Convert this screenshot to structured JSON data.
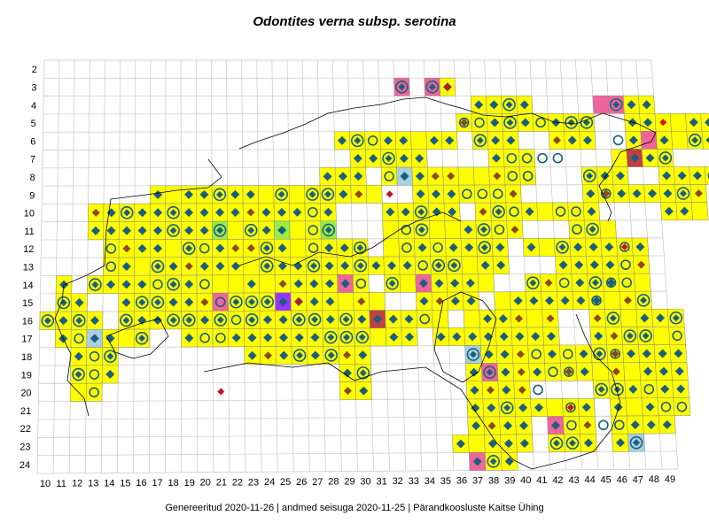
{
  "title": "Odontites verna subsp. serotina",
  "footer": {
    "generated_label": "Genereeritud 2020-11-26",
    "data_label": "andmed seisuga 2020-11-25",
    "org": "Pärandkoosluste Kaitse Ühing",
    "sep": "|"
  },
  "columns": [
    "10",
    "11",
    "12",
    "13",
    "14",
    "15",
    "16",
    "17",
    "18",
    "19",
    "20",
    "21",
    "22",
    "23",
    "24",
    "25",
    "26",
    "27",
    "28",
    "29",
    "30",
    "31",
    "32",
    "33",
    "34",
    "35",
    "36",
    "37",
    "38",
    "39",
    "40",
    "41",
    "42",
    "43",
    "44",
    "45",
    "46",
    "47",
    "48",
    "49"
  ],
  "rows": [
    "2",
    "3",
    "4",
    "5",
    "6",
    "7",
    "8",
    "9",
    "10",
    "11",
    "12",
    "13",
    "14",
    "15",
    "16",
    "17",
    "18",
    "19",
    "20",
    "21",
    "22",
    "23",
    "24"
  ],
  "colors": {
    "yellow": "#ffff00",
    "green": "#99ee44",
    "pink": "#ee6699",
    "light_blue": "#a8d0e0",
    "brown_red": "#c04040",
    "purple": "#9933ff",
    "diamond_blue": "#1a5e80",
    "diamond_brown": "#8b4a22",
    "diamond_red": "#cc1122",
    "grid_line": "#c8c8c8",
    "border": "#000000"
  },
  "legend_note": "map grid of occurrence squares"
}
